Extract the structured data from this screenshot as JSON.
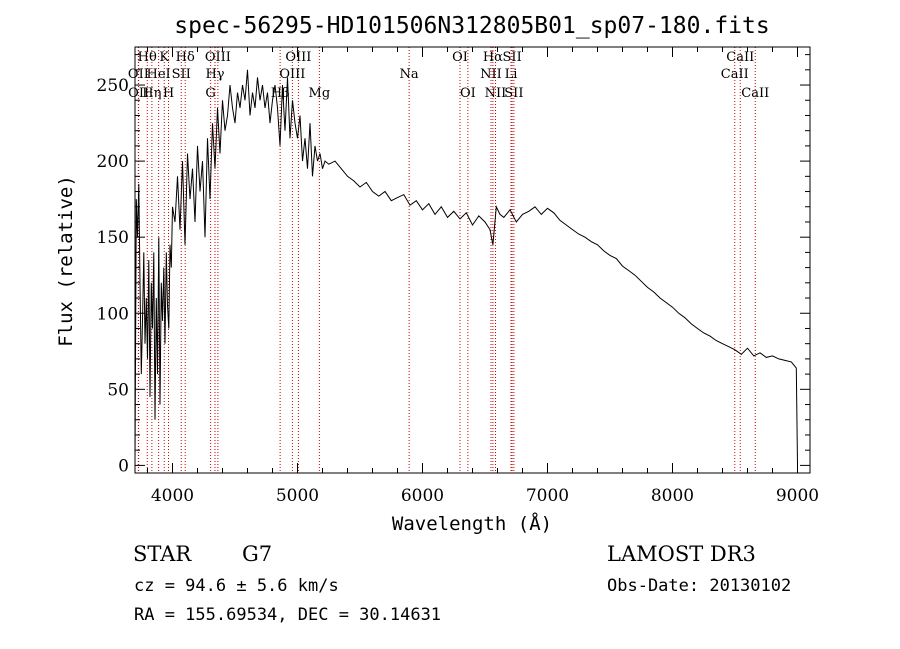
{
  "chart_data": {
    "type": "line",
    "title": "spec-56295-HD101506N312805B01_sp07-180.fits",
    "xlabel": "Wavelength (Å)",
    "ylabel": "Flux (relative)",
    "xlim": [
      3700,
      9100
    ],
    "ylim": [
      -5,
      275
    ],
    "xticks": [
      4000,
      5000,
      6000,
      7000,
      8000,
      9000
    ],
    "yticks": [
      0,
      50,
      100,
      150,
      200,
      250
    ],
    "series": [
      {
        "name": "flux",
        "x": [
          3700,
          3710,
          3720,
          3730,
          3740,
          3750,
          3760,
          3770,
          3780,
          3790,
          3800,
          3810,
          3820,
          3830,
          3840,
          3850,
          3860,
          3870,
          3880,
          3890,
          3900,
          3910,
          3920,
          3930,
          3940,
          3950,
          3960,
          3970,
          3980,
          3990,
          4000,
          4020,
          4040,
          4060,
          4080,
          4100,
          4120,
          4140,
          4160,
          4180,
          4200,
          4220,
          4240,
          4260,
          4280,
          4300,
          4320,
          4340,
          4360,
          4380,
          4400,
          4420,
          4440,
          4460,
          4480,
          4500,
          4520,
          4540,
          4560,
          4580,
          4600,
          4620,
          4640,
          4660,
          4680,
          4700,
          4720,
          4740,
          4760,
          4780,
          4800,
          4820,
          4840,
          4860,
          4880,
          4900,
          4920,
          4940,
          4960,
          4980,
          5000,
          5020,
          5040,
          5060,
          5080,
          5100,
          5120,
          5140,
          5160,
          5180,
          5200,
          5220,
          5250,
          5300,
          5350,
          5400,
          5450,
          5500,
          5550,
          5600,
          5650,
          5700,
          5750,
          5800,
          5850,
          5900,
          5950,
          6000,
          6050,
          6100,
          6150,
          6200,
          6250,
          6300,
          6350,
          6400,
          6450,
          6500,
          6540,
          6563,
          6590,
          6620,
          6650,
          6700,
          6750,
          6800,
          6850,
          6900,
          6950,
          7000,
          7050,
          7100,
          7150,
          7200,
          7250,
          7300,
          7350,
          7400,
          7450,
          7500,
          7550,
          7600,
          7650,
          7700,
          7750,
          7800,
          7850,
          7900,
          7950,
          8000,
          8050,
          8100,
          8150,
          8200,
          8250,
          8300,
          8350,
          8400,
          8450,
          8500,
          8550,
          8600,
          8650,
          8700,
          8750,
          8800,
          8850,
          8900,
          8950,
          8990,
          9000,
          9003
        ],
        "y": [
          2,
          175,
          150,
          185,
          120,
          60,
          95,
          140,
          80,
          110,
          70,
          135,
          45,
          120,
          90,
          140,
          30,
          110,
          60,
          150,
          40,
          120,
          95,
          130,
          80,
          140,
          105,
          90,
          145,
          130,
          170,
          160,
          190,
          155,
          200,
          145,
          205,
          175,
          195,
          160,
          210,
          180,
          200,
          150,
          215,
          175,
          225,
          195,
          235,
          205,
          240,
          220,
          230,
          250,
          235,
          225,
          245,
          235,
          250,
          240,
          260,
          230,
          245,
          235,
          255,
          240,
          250,
          235,
          245,
          225,
          240,
          250,
          235,
          210,
          250,
          220,
          255,
          215,
          240,
          225,
          215,
          230,
          200,
          215,
          195,
          225,
          190,
          210,
          200,
          205,
          195,
          200,
          198,
          200,
          195,
          190,
          187,
          183,
          186,
          180,
          177,
          180,
          174,
          176,
          178,
          171,
          174,
          168,
          172,
          165,
          170,
          163,
          167,
          162,
          166,
          158,
          164,
          160,
          155,
          145,
          170,
          165,
          163,
          168,
          160,
          165,
          167,
          170,
          165,
          169,
          166,
          161,
          158,
          155,
          152,
          150,
          147,
          145,
          141,
          138,
          136,
          131,
          128,
          125,
          121,
          117,
          114,
          110,
          107,
          104,
          100,
          97,
          93,
          90,
          87,
          85,
          82,
          80,
          78,
          76,
          73,
          77,
          72,
          74,
          71,
          72,
          70,
          69,
          68,
          64,
          0,
          0
        ]
      }
    ],
    "lines": [
      {
        "label": "OII",
        "lambda": 3727,
        "row": 2
      },
      {
        "label": "OII",
        "lambda": 3729,
        "row": 3
      },
      {
        "label": "Hθ",
        "lambda": 3798,
        "row": 1
      },
      {
        "label": "Hη",
        "lambda": 3835,
        "row": 3
      },
      {
        "label": "HeI",
        "lambda": 3889,
        "row": 2
      },
      {
        "label": "K",
        "lambda": 3934,
        "row": 1
      },
      {
        "label": "H",
        "lambda": 3968,
        "row": 3
      },
      {
        "label": "SII",
        "lambda": 4070,
        "row": 2
      },
      {
        "label": "Hδ",
        "lambda": 4102,
        "row": 1
      },
      {
        "label": "OIII",
        "lambda": 4363,
        "row": 1
      },
      {
        "label": "Hγ",
        "lambda": 4340,
        "row": 2
      },
      {
        "label": "G",
        "lambda": 4305,
        "row": 3
      },
      {
        "label": "Hβ",
        "lambda": 4861,
        "row": 3
      },
      {
        "label": "OIII",
        "lambda": 4959,
        "row": 2
      },
      {
        "label": "OIII",
        "lambda": 5007,
        "row": 1
      },
      {
        "label": "Mg",
        "lambda": 5175,
        "row": 3
      },
      {
        "label": "Na",
        "lambda": 5893,
        "row": 2
      },
      {
        "label": "OI",
        "lambda": 6300,
        "row": 1
      },
      {
        "label": "OI",
        "lambda": 6363,
        "row": 3
      },
      {
        "label": "NII",
        "lambda": 6548,
        "row": 2
      },
      {
        "label": "Hα",
        "lambda": 6563,
        "row": 1
      },
      {
        "label": "NII",
        "lambda": 6584,
        "row": 3
      },
      {
        "label": "Li",
        "lambda": 6708,
        "row": 2
      },
      {
        "label": "SII",
        "lambda": 6717,
        "row": 1
      },
      {
        "label": "SII",
        "lambda": 6731,
        "row": 3
      },
      {
        "label": "CaII",
        "lambda": 8498,
        "row": 2
      },
      {
        "label": "CaII",
        "lambda": 8542,
        "row": 1
      },
      {
        "label": "CaII",
        "lambda": 8662,
        "row": 3
      }
    ]
  },
  "info": {
    "object_class": "STAR",
    "subclass": "G7",
    "survey": "LAMOST DR3",
    "redshift": "cz = 94.6 ± 5.6 km/s",
    "obs_date": "Obs-Date: 20130102",
    "coords": "RA = 155.69534, DEC =  30.14631"
  },
  "colors": {
    "line": "#000000",
    "marker": "#cc0000",
    "background": "#ffffff"
  }
}
